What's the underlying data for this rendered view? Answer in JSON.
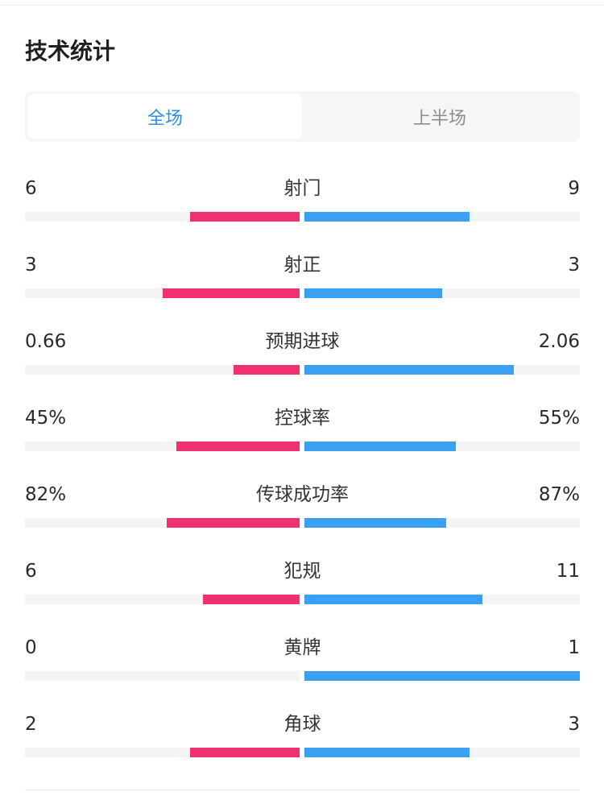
{
  "title": "技术统计",
  "tabs": [
    {
      "label": "全场",
      "active": true
    },
    {
      "label": "上半场",
      "active": false
    }
  ],
  "colors": {
    "home": "#f0306f",
    "away": "#3aa0f2",
    "active_tab": "#2d8fe8",
    "track": "#f4f4f6"
  },
  "stats": [
    {
      "label": "射门",
      "home": "6",
      "away": "9",
      "home_ratio": 0.4,
      "away_ratio": 0.6
    },
    {
      "label": "射正",
      "home": "3",
      "away": "3",
      "home_ratio": 0.5,
      "away_ratio": 0.5
    },
    {
      "label": "预期进球",
      "home": "0.66",
      "away": "2.06",
      "home_ratio": 0.24,
      "away_ratio": 0.76
    },
    {
      "label": "控球率",
      "home": "45%",
      "away": "55%",
      "home_ratio": 0.45,
      "away_ratio": 0.55
    },
    {
      "label": "传球成功率",
      "home": "82%",
      "away": "87%",
      "home_ratio": 0.485,
      "away_ratio": 0.515
    },
    {
      "label": "犯规",
      "home": "6",
      "away": "11",
      "home_ratio": 0.353,
      "away_ratio": 0.647
    },
    {
      "label": "黄牌",
      "home": "0",
      "away": "1",
      "home_ratio": 0.0,
      "away_ratio": 1.0
    },
    {
      "label": "角球",
      "home": "2",
      "away": "3",
      "home_ratio": 0.4,
      "away_ratio": 0.6
    }
  ]
}
